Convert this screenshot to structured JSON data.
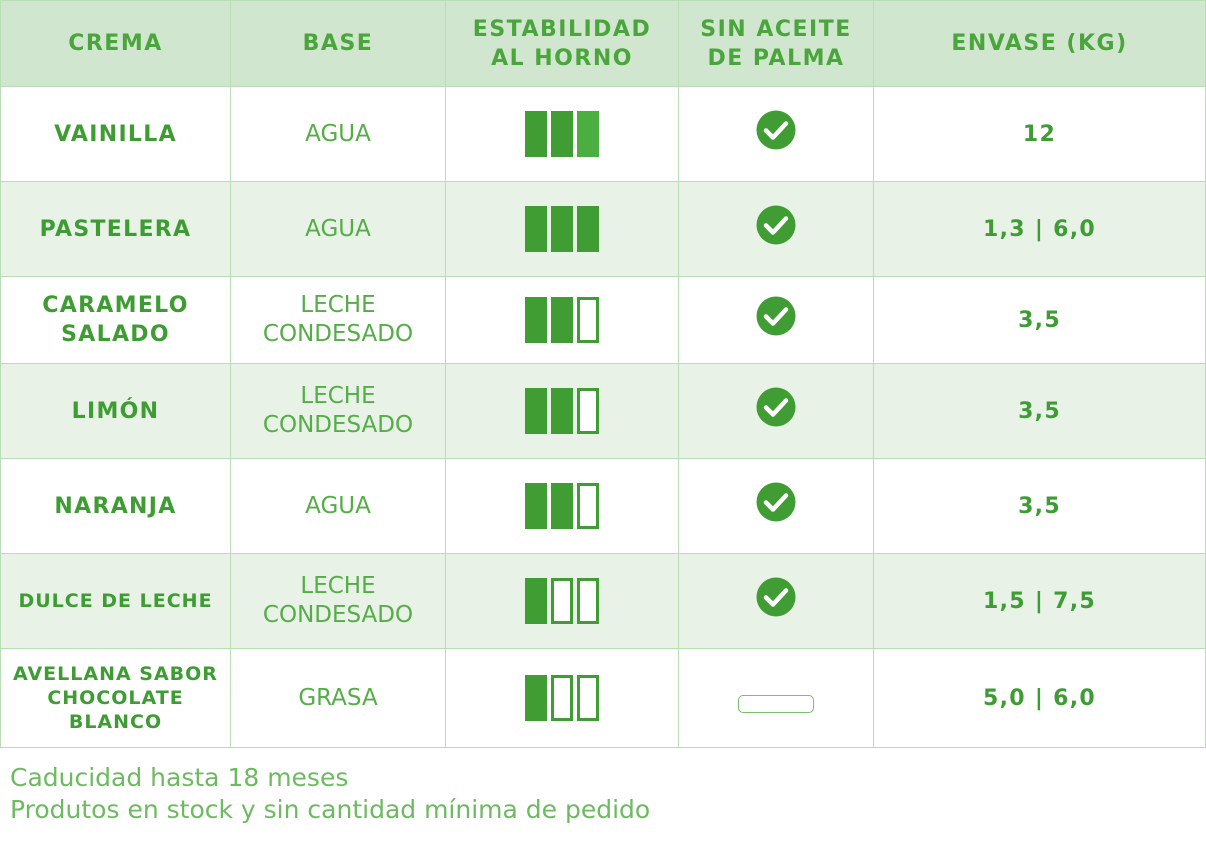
{
  "headers": {
    "crema": "CREMA",
    "base": "BASE",
    "estabilidad_1": "ESTABILIDAD",
    "estabilidad_2": "AL HORNO",
    "palma_1": "SIN ACEITE",
    "palma_2": "DE PALMA",
    "envase": "ENVASE (KG)"
  },
  "rows": [
    {
      "name": [
        "VAINILLA"
      ],
      "base": [
        "AGUA"
      ],
      "stability": 3,
      "palm_free": true,
      "package": "12"
    },
    {
      "name": [
        "PASTELERA"
      ],
      "base": [
        "AGUA"
      ],
      "stability": 3,
      "palm_free": true,
      "package": "1,3 | 6,0"
    },
    {
      "name": [
        "CARAMELO",
        "SALADO"
      ],
      "base": [
        "LECHE",
        "CONDESADO"
      ],
      "stability": 2,
      "palm_free": true,
      "package": "3,5"
    },
    {
      "name": [
        "LIMÓN"
      ],
      "base": [
        "LECHE",
        "CONDESADO"
      ],
      "stability": 2,
      "palm_free": true,
      "package": "3,5"
    },
    {
      "name": [
        "NARANJA"
      ],
      "base": [
        "AGUA"
      ],
      "stability": 2,
      "palm_free": true,
      "package": "3,5"
    },
    {
      "name": [
        "DULCE DE LECHE"
      ],
      "base": [
        "LECHE",
        "CONDESADO"
      ],
      "stability": 1,
      "palm_free": true,
      "package": "1,5 | 7,5"
    },
    {
      "name": [
        "AVELLANA SABOR",
        "CHOCOLATE",
        "BLANCO"
      ],
      "base": [
        "GRASA"
      ],
      "stability": 1,
      "palm_free": false,
      "package": "5,0 | 6,0"
    }
  ],
  "stability_max": 3,
  "footer": {
    "line1": "Caducidad hasta 18 meses",
    "line2": "Produtos en stock y sin cantidad mínima de pedido"
  },
  "colors": {
    "header_bg": "#d1e6ce",
    "row_tint": "#e8f2e6",
    "accent": "#3f9d33",
    "border": "#b9ddb4"
  },
  "icons": {
    "palm_free_true": "check-circle-icon",
    "palm_free_false": "empty-pill-icon",
    "stability_on": "filled-bar-icon",
    "stability_off": "outlined-bar-icon"
  }
}
